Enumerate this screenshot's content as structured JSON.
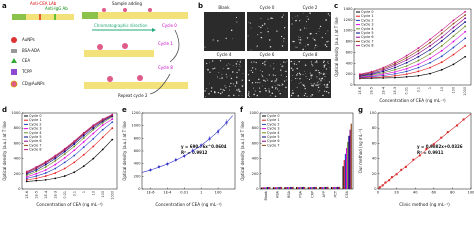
{
  "diagram": {
    "label": "a",
    "texts": [
      "Anti-CEA LAb",
      "Anti-IgG Ab",
      "Sample adding",
      "Chromatographic direction",
      "Cycle 0",
      "Cycle 1",
      "Cycle 8",
      "Repeat cycle 2",
      "AuNPs",
      "BSA-ADA",
      "CEA",
      "TCPP",
      "CD@AuNPs"
    ]
  },
  "images": {
    "label": "b",
    "titles": [
      "Blank",
      "Cycle 0",
      "Cycle 2",
      "Cycle 4",
      "Cycle 6",
      "Cycle 8"
    ]
  },
  "chart_data": [
    {
      "type": "line",
      "label": "c",
      "x_label": "Concentration of CEA (ng mL⁻¹)",
      "y_label": "Optical density (a.u.) at T line",
      "categories": [
        "1E-6",
        "1E-5",
        "1E-4",
        "1E-3",
        "0.01",
        "0.1",
        "1",
        "10",
        "100",
        "1000"
      ],
      "ylim": [
        0,
        1400
      ],
      "yticks": [
        0,
        200,
        400,
        600,
        800,
        1000,
        1200,
        1400
      ],
      "legend": "upper left",
      "series": [
        {
          "name": "Cycle 0",
          "color": "#000000",
          "values": [
            120,
            125,
            130,
            135,
            150,
            170,
            210,
            280,
            380,
            520
          ]
        },
        {
          "name": "Cycle 1",
          "color": "#e41a1c",
          "values": [
            130,
            140,
            150,
            170,
            200,
            250,
            320,
            420,
            560,
            720
          ]
        },
        {
          "name": "Cycle 2",
          "color": "#1f3fbf",
          "values": [
            140,
            155,
            175,
            205,
            250,
            320,
            410,
            530,
            690,
            860
          ]
        },
        {
          "name": "Cycle 3",
          "color": "#e000e0",
          "values": [
            150,
            170,
            200,
            240,
            300,
            380,
            490,
            630,
            800,
            980
          ]
        },
        {
          "name": "Cycle 4",
          "color": "#6b8e23",
          "values": [
            160,
            185,
            225,
            280,
            350,
            450,
            570,
            720,
            900,
            1080
          ]
        },
        {
          "name": "Cycle 5",
          "color": "#000080",
          "values": [
            170,
            200,
            250,
            320,
            410,
            520,
            650,
            810,
            990,
            1160
          ]
        },
        {
          "name": "Cycle 6",
          "color": "#8b008b",
          "values": [
            180,
            215,
            275,
            360,
            460,
            580,
            720,
            880,
            1060,
            1230
          ]
        },
        {
          "name": "Cycle 7",
          "color": "#8b4513",
          "values": [
            190,
            230,
            300,
            390,
            500,
            630,
            780,
            950,
            1130,
            1290
          ]
        },
        {
          "name": "Cycle 8",
          "color": "#c71585",
          "values": [
            200,
            245,
            320,
            420,
            540,
            680,
            840,
            1010,
            1190,
            1350
          ]
        }
      ]
    },
    {
      "type": "line",
      "label": "d",
      "x_label": "Concentration of CEA (ng mL⁻¹)",
      "y_label": "Optical density (a.u.) at T line",
      "categories": [
        "1E-6",
        "1E-5",
        "1E-4",
        "1E-3",
        "0.01",
        "0.1",
        "1",
        "10",
        "100",
        "1000"
      ],
      "ylim": [
        0,
        1000
      ],
      "yticks": [
        0,
        200,
        400,
        600,
        800,
        1000
      ],
      "legend": "upper left",
      "series": [
        {
          "name": "Cycle 0",
          "color": "#000000",
          "values": [
            100,
            110,
            120,
            140,
            170,
            220,
            300,
            400,
            520,
            650
          ]
        },
        {
          "name": "Cycle 1",
          "color": "#e41a1c",
          "values": [
            120,
            140,
            170,
            210,
            270,
            350,
            450,
            560,
            680,
            800
          ]
        },
        {
          "name": "Cycle 2",
          "color": "#1f3fbf",
          "values": [
            140,
            170,
            210,
            270,
            350,
            440,
            550,
            660,
            780,
            880
          ]
        },
        {
          "name": "Cycle 3",
          "color": "#e000e0",
          "values": [
            160,
            200,
            250,
            320,
            410,
            510,
            620,
            730,
            840,
            920
          ]
        },
        {
          "name": "Cycle 4",
          "color": "#6b8e23",
          "values": [
            180,
            230,
            290,
            370,
            460,
            560,
            670,
            780,
            870,
            950
          ]
        },
        {
          "name": "Cycle 5",
          "color": "#000080",
          "values": [
            200,
            250,
            320,
            400,
            490,
            590,
            700,
            800,
            890,
            960
          ]
        },
        {
          "name": "Cycle 6",
          "color": "#8b008b",
          "values": [
            210,
            270,
            340,
            420,
            510,
            610,
            720,
            820,
            900,
            970
          ]
        },
        {
          "name": "Cycle 7",
          "color": "#8b4513",
          "values": [
            220,
            280,
            350,
            430,
            520,
            620,
            730,
            830,
            910,
            975
          ]
        },
        {
          "name": "Cycle 8",
          "color": "#c71585",
          "values": [
            230,
            290,
            360,
            440,
            530,
            630,
            740,
            840,
            920,
            980
          ]
        }
      ]
    },
    {
      "type": "scatter",
      "label": "e",
      "x_label": "Concentration of CEA (ng mL⁻¹)",
      "y_label": "Optical density (a.u.) at T line",
      "x": [
        1e-06,
        1e-05,
        0.0001,
        0.001,
        0.01,
        0.1,
        1,
        10,
        100,
        1000
      ],
      "y": [
        300,
        350,
        395,
        460,
        520,
        605,
        688,
        795,
        905,
        1050
      ],
      "errors": [
        30,
        28,
        35,
        32,
        30,
        40,
        35,
        42,
        45,
        50
      ],
      "xlim": [
        1e-07,
        10000
      ],
      "xlog": true,
      "xticks": [
        {
          "value": 1e-06,
          "label": "1E-6"
        },
        {
          "value": 0.0001,
          "label": "1E-4"
        },
        {
          "value": 0.01,
          "label": "0.01"
        },
        {
          "value": 1,
          "label": "1"
        },
        {
          "value": 100,
          "label": "100"
        }
      ],
      "ylim": [
        0,
        1200
      ],
      "yticks": [
        0,
        200,
        400,
        600,
        800,
        1000,
        1200
      ],
      "color": "#3333cc",
      "fit": {
        "form": "power",
        "a": 690.76,
        "b": 0.0604,
        "label": "y = 690.76x^0.0604",
        "r2": "R² = 0.9912"
      }
    },
    {
      "type": "bar",
      "label": "f",
      "y_label": "Optical density (a.u.) at T line",
      "categories": [
        "Blank",
        "HSA",
        "BSA",
        "PSA",
        "CRP",
        "AFP",
        "PCT",
        "CEA"
      ],
      "ylim": [
        0,
        1000
      ],
      "yticks": [
        0,
        200,
        400,
        600,
        800,
        1000
      ],
      "legend": "upper left",
      "series": [
        {
          "name": "Cycle 0",
          "color": "#000000",
          "values": [
            20,
            22,
            25,
            24,
            23,
            26,
            25,
            300
          ]
        },
        {
          "name": "Cycle 1",
          "color": "#e41a1c",
          "values": [
            21,
            23,
            24,
            25,
            22,
            27,
            24,
            380
          ]
        },
        {
          "name": "Cycle 2",
          "color": "#1f3fbf",
          "values": [
            22,
            24,
            26,
            23,
            24,
            25,
            26,
            460
          ]
        },
        {
          "name": "Cycle 3",
          "color": "#e000e0",
          "values": [
            23,
            25,
            24,
            26,
            25,
            24,
            27,
            540
          ]
        },
        {
          "name": "Cycle 4",
          "color": "#6b8e23",
          "values": [
            24,
            26,
            25,
            27,
            26,
            28,
            25,
            620
          ]
        },
        {
          "name": "Cycle 5",
          "color": "#000080",
          "values": [
            25,
            24,
            27,
            25,
            27,
            26,
            28,
            700
          ]
        },
        {
          "name": "Cycle 6",
          "color": "#8b008b",
          "values": [
            26,
            27,
            26,
            28,
            25,
            29,
            27,
            780
          ]
        },
        {
          "name": "Cycle 7",
          "color": "#8b4513",
          "values": [
            27,
            28,
            28,
            26,
            28,
            27,
            29,
            860
          ]
        }
      ]
    },
    {
      "type": "scatter",
      "label": "g",
      "x_label": "Clinic method (ng mL⁻¹)",
      "y_label": "Our method (ng mL⁻¹)",
      "x": [
        2,
        5,
        8,
        12,
        15,
        20,
        25,
        30,
        38,
        45,
        52,
        60,
        68,
        75,
        85,
        92
      ],
      "y": [
        2.3,
        4.8,
        8.5,
        11.5,
        15.6,
        19.4,
        25.2,
        29.1,
        38.6,
        44.2,
        52.8,
        58.9,
        67.5,
        74.8,
        83.6,
        91.5
      ],
      "xlim": [
        0,
        100
      ],
      "xticks": [
        0,
        20,
        40,
        60,
        80,
        100
      ],
      "ylim": [
        0,
        100
      ],
      "yticks": [
        0,
        20,
        40,
        60,
        80,
        100
      ],
      "color": "#d62728",
      "fit": {
        "form": "linear",
        "a": 0.9882,
        "b": 0.0326,
        "label": "y = 0.9882x+0.0326",
        "r2": "R² = 0.9911"
      }
    }
  ]
}
